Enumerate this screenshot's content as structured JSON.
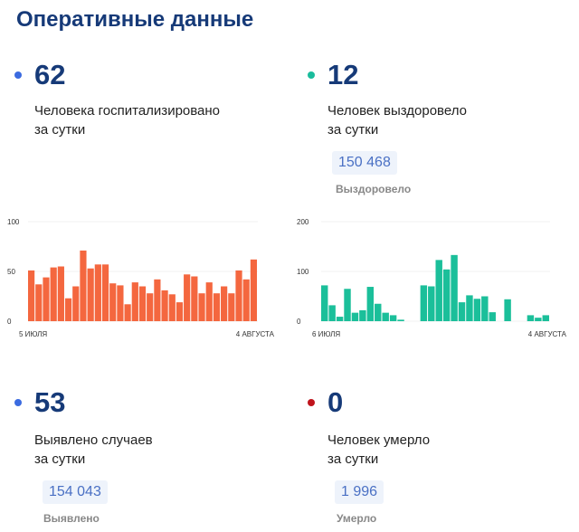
{
  "title": "Оперативные данные",
  "blocks": [
    {
      "value": "62",
      "line1": "Человека госпитализировано",
      "line2": "за сутки",
      "dot_color": "#3b6be0"
    },
    {
      "value": "12",
      "line1": "Человек выздоровело",
      "line2": "за сутки",
      "dot_color": "#1abc9c",
      "total": "150 468",
      "total_label": "Выздоровело"
    },
    {
      "value": "53",
      "line1": "Выявлено случаев",
      "line2": "за сутки",
      "dot_color": "#3b6be0",
      "total": "154 043",
      "total_label": "Выявлено"
    },
    {
      "value": "0",
      "line1": "Человек умерло",
      "line2": "за сутки",
      "dot_color": "#c0141c",
      "total": "1 996",
      "total_label": "Умерло"
    }
  ],
  "chart_data": [
    {
      "type": "bar",
      "color": "#f4673f",
      "ylim": [
        0,
        100
      ],
      "yticks": [
        "0",
        "50",
        "100"
      ],
      "x_start": "5 ИЮЛЯ",
      "x_end": "4 АВГУСТА",
      "values": [
        51,
        37,
        44,
        54,
        55,
        23,
        35,
        71,
        53,
        57,
        57,
        38,
        36,
        17,
        39,
        35,
        28,
        42,
        31,
        27,
        19,
        47,
        45,
        28,
        39,
        28,
        35,
        28,
        51,
        42,
        62
      ]
    },
    {
      "type": "bar",
      "color": "#1bbf9a",
      "ylim": [
        0,
        200
      ],
      "yticks": [
        "0",
        "100",
        "200"
      ],
      "x_start": "6 ИЮЛЯ",
      "x_end": "4 АВГУСТА",
      "values": [
        72,
        32,
        9,
        65,
        17,
        22,
        69,
        35,
        17,
        12,
        3,
        0,
        0,
        72,
        70,
        123,
        104,
        133,
        38,
        52,
        45,
        50,
        18,
        0,
        44,
        0,
        0,
        12,
        7,
        12
      ]
    }
  ]
}
